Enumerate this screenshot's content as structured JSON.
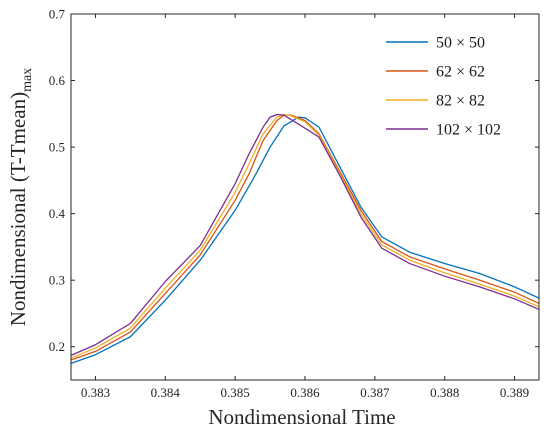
{
  "chart_data": {
    "type": "line",
    "title": "",
    "xlabel": "Nondimensional Time",
    "ylabel": "Nondimensional (T-Tmean)",
    "ylabel_subscript": "max",
    "xlim": [
      0.38265,
      0.38935
    ],
    "ylim": [
      0.15,
      0.7
    ],
    "xticks": [
      0.383,
      0.384,
      0.385,
      0.386,
      0.387,
      0.388,
      0.389
    ],
    "yticks": [
      0.2,
      0.3,
      0.4,
      0.5,
      0.6,
      0.7
    ],
    "xtick_labels": [
      "0.383",
      "0.384",
      "0.385",
      "0.386",
      "0.387",
      "0.388",
      "0.389"
    ],
    "ytick_labels": [
      "0.2",
      "0.3",
      "0.4",
      "0.5",
      "0.6",
      "0.7"
    ],
    "grid": false,
    "legend_position": "top-right",
    "series": [
      {
        "name": "50 × 50",
        "color": "#0072BD",
        "x": [
          0.38265,
          0.383,
          0.3835,
          0.384,
          0.3845,
          0.385,
          0.3853,
          0.3855,
          0.3857,
          0.3858,
          0.3859,
          0.386,
          0.3862,
          0.3865,
          0.3868,
          0.3871,
          0.3875,
          0.388,
          0.3885,
          0.389,
          0.38935
        ],
        "y": [
          0.175,
          0.188,
          0.215,
          0.27,
          0.33,
          0.405,
          0.46,
          0.5,
          0.532,
          0.538,
          0.545,
          0.544,
          0.53,
          0.47,
          0.41,
          0.365,
          0.342,
          0.325,
          0.31,
          0.29,
          0.273
        ]
      },
      {
        "name": "62 × 62",
        "color": "#D95319",
        "x": [
          0.38265,
          0.383,
          0.3835,
          0.384,
          0.3845,
          0.385,
          0.3852,
          0.3854,
          0.3856,
          0.3857,
          0.3858,
          0.386,
          0.3862,
          0.3865,
          0.3868,
          0.3871,
          0.3875,
          0.388,
          0.3885,
          0.389,
          0.38935
        ],
        "y": [
          0.18,
          0.193,
          0.222,
          0.28,
          0.338,
          0.42,
          0.46,
          0.51,
          0.54,
          0.548,
          0.548,
          0.54,
          0.52,
          0.463,
          0.405,
          0.358,
          0.335,
          0.317,
          0.3,
          0.282,
          0.265
        ]
      },
      {
        "name": "82 × 82",
        "color": "#EDB120",
        "x": [
          0.38265,
          0.383,
          0.3835,
          0.384,
          0.3845,
          0.385,
          0.3852,
          0.3854,
          0.3856,
          0.3857,
          0.3858,
          0.386,
          0.3862,
          0.3865,
          0.3868,
          0.3871,
          0.3875,
          0.388,
          0.3885,
          0.389,
          0.38935
        ],
        "y": [
          0.183,
          0.198,
          0.228,
          0.288,
          0.345,
          0.432,
          0.475,
          0.52,
          0.545,
          0.549,
          0.547,
          0.538,
          0.518,
          0.46,
          0.4,
          0.353,
          0.33,
          0.311,
          0.294,
          0.276,
          0.26
        ]
      },
      {
        "name": "102 × 102",
        "color": "#7E2F8E",
        "x": [
          0.38265,
          0.383,
          0.3835,
          0.384,
          0.3845,
          0.385,
          0.3852,
          0.3854,
          0.3855,
          0.3856,
          0.3857,
          0.3859,
          0.3862,
          0.3865,
          0.3868,
          0.3871,
          0.3875,
          0.388,
          0.3885,
          0.389,
          0.38935
        ],
        "y": [
          0.187,
          0.203,
          0.235,
          0.298,
          0.352,
          0.445,
          0.49,
          0.53,
          0.545,
          0.549,
          0.548,
          0.535,
          0.515,
          0.457,
          0.395,
          0.348,
          0.325,
          0.306,
          0.29,
          0.272,
          0.256
        ]
      }
    ]
  }
}
